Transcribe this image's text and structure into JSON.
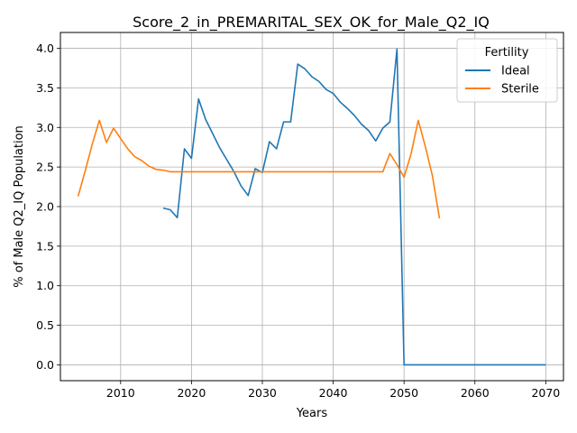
{
  "chart_data": {
    "type": "line",
    "title": "Score_2_in_PREMARITAL_SEX_OK_for_Male_Q2_IQ",
    "xlabel": "Years",
    "ylabel": "% of Male Q2_IQ Population",
    "xlim": [
      2001.5,
      2072.5
    ],
    "ylim": [
      -0.2,
      4.2
    ],
    "xticks": [
      2010,
      2020,
      2030,
      2040,
      2050,
      2060,
      2070
    ],
    "yticks": [
      0.0,
      0.5,
      1.0,
      1.5,
      2.0,
      2.5,
      3.0,
      3.5,
      4.0
    ],
    "ytick_labels": [
      "0.0",
      "0.5",
      "1.0",
      "1.5",
      "2.0",
      "2.5",
      "3.0",
      "3.5",
      "4.0"
    ],
    "grid": true,
    "legend": {
      "title": "Fertility",
      "placement": "top-right"
    },
    "series": [
      {
        "name": "Ideal",
        "color": "#1f77b4",
        "points": [
          [
            2016,
            1.98
          ],
          [
            2017,
            1.96
          ],
          [
            2018,
            1.86
          ],
          [
            2019,
            2.73
          ],
          [
            2020,
            2.61
          ],
          [
            2021,
            3.36
          ],
          [
            2022,
            3.1
          ],
          [
            2023,
            2.92
          ],
          [
            2024,
            2.74
          ],
          [
            2025,
            2.59
          ],
          [
            2026,
            2.44
          ],
          [
            2027,
            2.26
          ],
          [
            2028,
            2.14
          ],
          [
            2029,
            2.48
          ],
          [
            2030,
            2.43
          ],
          [
            2031,
            2.82
          ],
          [
            2032,
            2.73
          ],
          [
            2033,
            3.07
          ],
          [
            2034,
            3.07
          ],
          [
            2035,
            3.8
          ],
          [
            2036,
            3.74
          ],
          [
            2037,
            3.64
          ],
          [
            2038,
            3.58
          ],
          [
            2039,
            3.48
          ],
          [
            2040,
            3.43
          ],
          [
            2041,
            3.32
          ],
          [
            2042,
            3.24
          ],
          [
            2043,
            3.15
          ],
          [
            2044,
            3.04
          ],
          [
            2045,
            2.96
          ],
          [
            2046,
            2.83
          ],
          [
            2047,
            2.99
          ],
          [
            2048,
            3.07
          ],
          [
            2049,
            3.99
          ],
          [
            2050,
            0.0
          ],
          [
            2051,
            0.0
          ],
          [
            2055,
            0.0
          ],
          [
            2060,
            0.0
          ],
          [
            2065,
            0.0
          ],
          [
            2070,
            0.0
          ]
        ]
      },
      {
        "name": "Sterile",
        "color": "#ff7f0e",
        "points": [
          [
            2004,
            2.13
          ],
          [
            2005,
            2.45
          ],
          [
            2006,
            2.79
          ],
          [
            2007,
            3.09
          ],
          [
            2008,
            2.81
          ],
          [
            2009,
            2.99
          ],
          [
            2010,
            2.86
          ],
          [
            2011,
            2.73
          ],
          [
            2012,
            2.63
          ],
          [
            2013,
            2.58
          ],
          [
            2014,
            2.51
          ],
          [
            2015,
            2.47
          ],
          [
            2016,
            2.46
          ],
          [
            2017,
            2.44
          ],
          [
            2020,
            2.44
          ],
          [
            2025,
            2.44
          ],
          [
            2030,
            2.44
          ],
          [
            2035,
            2.44
          ],
          [
            2040,
            2.44
          ],
          [
            2045,
            2.44
          ],
          [
            2047,
            2.44
          ],
          [
            2048,
            2.67
          ],
          [
            2049,
            2.53
          ],
          [
            2050,
            2.37
          ],
          [
            2051,
            2.67
          ],
          [
            2052,
            3.09
          ],
          [
            2053,
            2.76
          ],
          [
            2054,
            2.39
          ],
          [
            2055,
            1.85
          ]
        ]
      }
    ]
  }
}
